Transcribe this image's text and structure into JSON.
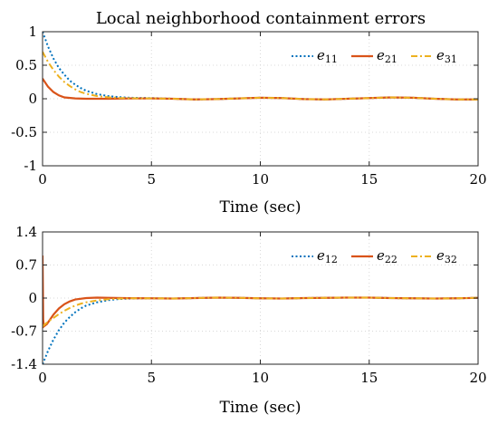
{
  "chart_data": [
    {
      "type": "line",
      "title": "Local neighborhood containment errors",
      "xlabel": "Time (sec)",
      "ylabel": "",
      "xlim": [
        0,
        20
      ],
      "ylim": [
        -1,
        1
      ],
      "xticks": [
        0,
        5,
        10,
        15,
        20
      ],
      "yticks": [
        -1,
        -0.5,
        0,
        0.5,
        1
      ],
      "xtick_labels": [
        "0",
        "5",
        "10",
        "15",
        "20"
      ],
      "ytick_labels": [
        "-1",
        "-0.5",
        "0",
        "0.5",
        "1"
      ],
      "grid": true,
      "legend_position": "top-right",
      "series": [
        {
          "name": "e11",
          "legend_base": "e",
          "legend_sub": "11",
          "color": "#0072BD",
          "dash": "dotted",
          "points": [
            [
              0,
              1.0
            ],
            [
              0.25,
              0.78
            ],
            [
              0.5,
              0.6
            ],
            [
              0.75,
              0.46
            ],
            [
              1,
              0.36
            ],
            [
              1.25,
              0.27
            ],
            [
              1.5,
              0.21
            ],
            [
              1.75,
              0.16
            ],
            [
              2,
              0.12
            ],
            [
              2.5,
              0.07
            ],
            [
              3,
              0.04
            ],
            [
              3.5,
              0.025
            ],
            [
              4,
              0.015
            ],
            [
              5,
              0.01
            ],
            [
              6,
              0.0
            ],
            [
              7,
              -0.01
            ],
            [
              8,
              -0.005
            ],
            [
              9,
              0.005
            ],
            [
              10,
              0.015
            ],
            [
              11,
              0.01
            ],
            [
              12,
              -0.005
            ],
            [
              13,
              -0.01
            ],
            [
              14,
              0.0
            ],
            [
              15,
              0.01
            ],
            [
              16,
              0.02
            ],
            [
              17,
              0.015
            ],
            [
              18,
              0.0
            ],
            [
              19,
              -0.01
            ],
            [
              20,
              -0.01
            ]
          ]
        },
        {
          "name": "e21",
          "legend_base": "e",
          "legend_sub": "21",
          "color": "#D95319",
          "dash": "solid",
          "points": [
            [
              0,
              0.3
            ],
            [
              0.25,
              0.18
            ],
            [
              0.5,
              0.1
            ],
            [
              0.75,
              0.05
            ],
            [
              1,
              0.02
            ],
            [
              1.5,
              0.005
            ],
            [
              2,
              0.0
            ],
            [
              3,
              0.0
            ],
            [
              4,
              0.005
            ],
            [
              5,
              0.005
            ],
            [
              6,
              0.0
            ],
            [
              7,
              -0.01
            ],
            [
              8,
              -0.005
            ],
            [
              9,
              0.005
            ],
            [
              10,
              0.015
            ],
            [
              11,
              0.01
            ],
            [
              12,
              -0.005
            ],
            [
              13,
              -0.01
            ],
            [
              14,
              0.0
            ],
            [
              15,
              0.01
            ],
            [
              16,
              0.02
            ],
            [
              17,
              0.015
            ],
            [
              18,
              0.0
            ],
            [
              19,
              -0.01
            ],
            [
              20,
              -0.01
            ]
          ]
        },
        {
          "name": "e31",
          "legend_base": "e",
          "legend_sub": "31",
          "color": "#EDB120",
          "dash": "dashdot",
          "points": [
            [
              0,
              0.7
            ],
            [
              0.25,
              0.55
            ],
            [
              0.5,
              0.43
            ],
            [
              0.75,
              0.33
            ],
            [
              1,
              0.25
            ],
            [
              1.25,
              0.19
            ],
            [
              1.5,
              0.14
            ],
            [
              1.75,
              0.1
            ],
            [
              2,
              0.075
            ],
            [
              2.5,
              0.04
            ],
            [
              3,
              0.022
            ],
            [
              3.5,
              0.012
            ],
            [
              4,
              0.008
            ],
            [
              5,
              0.006
            ],
            [
              6,
              0.0
            ],
            [
              7,
              -0.01
            ],
            [
              8,
              -0.005
            ],
            [
              9,
              0.005
            ],
            [
              10,
              0.015
            ],
            [
              11,
              0.01
            ],
            [
              12,
              -0.005
            ],
            [
              13,
              -0.01
            ],
            [
              14,
              0.0
            ],
            [
              15,
              0.01
            ],
            [
              16,
              0.02
            ],
            [
              17,
              0.015
            ],
            [
              18,
              0.0
            ],
            [
              19,
              -0.01
            ],
            [
              20,
              -0.01
            ]
          ]
        }
      ]
    },
    {
      "type": "line",
      "title": "",
      "xlabel": "Time (sec)",
      "ylabel": "",
      "xlim": [
        0,
        20
      ],
      "ylim": [
        -1.4,
        1.4
      ],
      "xticks": [
        0,
        5,
        10,
        15,
        20
      ],
      "yticks": [
        -1.4,
        -0.7,
        0,
        0.7,
        1.4
      ],
      "xtick_labels": [
        "0",
        "5",
        "10",
        "15",
        "20"
      ],
      "ytick_labels": [
        "-1.4",
        "-0.7",
        "0",
        "0.7",
        "1.4"
      ],
      "grid": true,
      "legend_position": "top-right",
      "series": [
        {
          "name": "e12",
          "legend_base": "e",
          "legend_sub": "12",
          "color": "#0072BD",
          "dash": "dotted",
          "points": [
            [
              0,
              -1.4
            ],
            [
              0.25,
              -1.12
            ],
            [
              0.5,
              -0.88
            ],
            [
              0.75,
              -0.68
            ],
            [
              1,
              -0.52
            ],
            [
              1.25,
              -0.4
            ],
            [
              1.5,
              -0.3
            ],
            [
              1.75,
              -0.22
            ],
            [
              2,
              -0.16
            ],
            [
              2.5,
              -0.09
            ],
            [
              3,
              -0.045
            ],
            [
              3.5,
              -0.02
            ],
            [
              4,
              -0.01
            ],
            [
              5,
              -0.005
            ],
            [
              6,
              -0.01
            ],
            [
              7,
              0.0
            ],
            [
              8,
              0.01
            ],
            [
              9,
              0.005
            ],
            [
              10,
              -0.005
            ],
            [
              11,
              -0.01
            ],
            [
              12,
              0.0
            ],
            [
              13,
              0.005
            ],
            [
              14,
              0.01
            ],
            [
              15,
              0.01
            ],
            [
              16,
              0.0
            ],
            [
              17,
              -0.005
            ],
            [
              18,
              -0.01
            ],
            [
              19,
              -0.005
            ],
            [
              20,
              0.005
            ]
          ]
        },
        {
          "name": "e22",
          "legend_base": "e",
          "legend_sub": "22",
          "color": "#D95319",
          "dash": "solid",
          "points": [
            [
              0,
              0.9
            ],
            [
              0.03,
              -0.45
            ],
            [
              0.06,
              -0.6
            ],
            [
              0.2,
              -0.55
            ],
            [
              0.5,
              -0.35
            ],
            [
              0.75,
              -0.22
            ],
            [
              1,
              -0.13
            ],
            [
              1.25,
              -0.07
            ],
            [
              1.5,
              -0.03
            ],
            [
              2,
              0.0
            ],
            [
              2.5,
              0.01
            ],
            [
              3,
              0.005
            ],
            [
              4,
              -0.002
            ],
            [
              5,
              -0.005
            ],
            [
              6,
              -0.01
            ],
            [
              7,
              0.0
            ],
            [
              8,
              0.01
            ],
            [
              9,
              0.005
            ],
            [
              10,
              -0.005
            ],
            [
              11,
              -0.01
            ],
            [
              12,
              0.0
            ],
            [
              13,
              0.005
            ],
            [
              14,
              0.01
            ],
            [
              15,
              0.01
            ],
            [
              16,
              0.0
            ],
            [
              17,
              -0.005
            ],
            [
              18,
              -0.01
            ],
            [
              19,
              -0.005
            ],
            [
              20,
              0.005
            ]
          ]
        },
        {
          "name": "e32",
          "legend_base": "e",
          "legend_sub": "32",
          "color": "#EDB120",
          "dash": "dashdot",
          "points": [
            [
              0,
              -0.6
            ],
            [
              0.25,
              -0.5
            ],
            [
              0.5,
              -0.42
            ],
            [
              0.75,
              -0.34
            ],
            [
              1,
              -0.27
            ],
            [
              1.25,
              -0.21
            ],
            [
              1.5,
              -0.16
            ],
            [
              1.75,
              -0.12
            ],
            [
              2,
              -0.09
            ],
            [
              2.5,
              -0.05
            ],
            [
              3,
              -0.025
            ],
            [
              3.5,
              -0.012
            ],
            [
              4,
              -0.006
            ],
            [
              5,
              -0.004
            ],
            [
              6,
              -0.01
            ],
            [
              7,
              0.0
            ],
            [
              8,
              0.01
            ],
            [
              9,
              0.005
            ],
            [
              10,
              -0.005
            ],
            [
              11,
              -0.01
            ],
            [
              12,
              0.0
            ],
            [
              13,
              0.005
            ],
            [
              14,
              0.01
            ],
            [
              15,
              0.01
            ],
            [
              16,
              0.0
            ],
            [
              17,
              -0.005
            ],
            [
              18,
              -0.01
            ],
            [
              19,
              -0.005
            ],
            [
              20,
              0.005
            ]
          ]
        }
      ]
    }
  ]
}
